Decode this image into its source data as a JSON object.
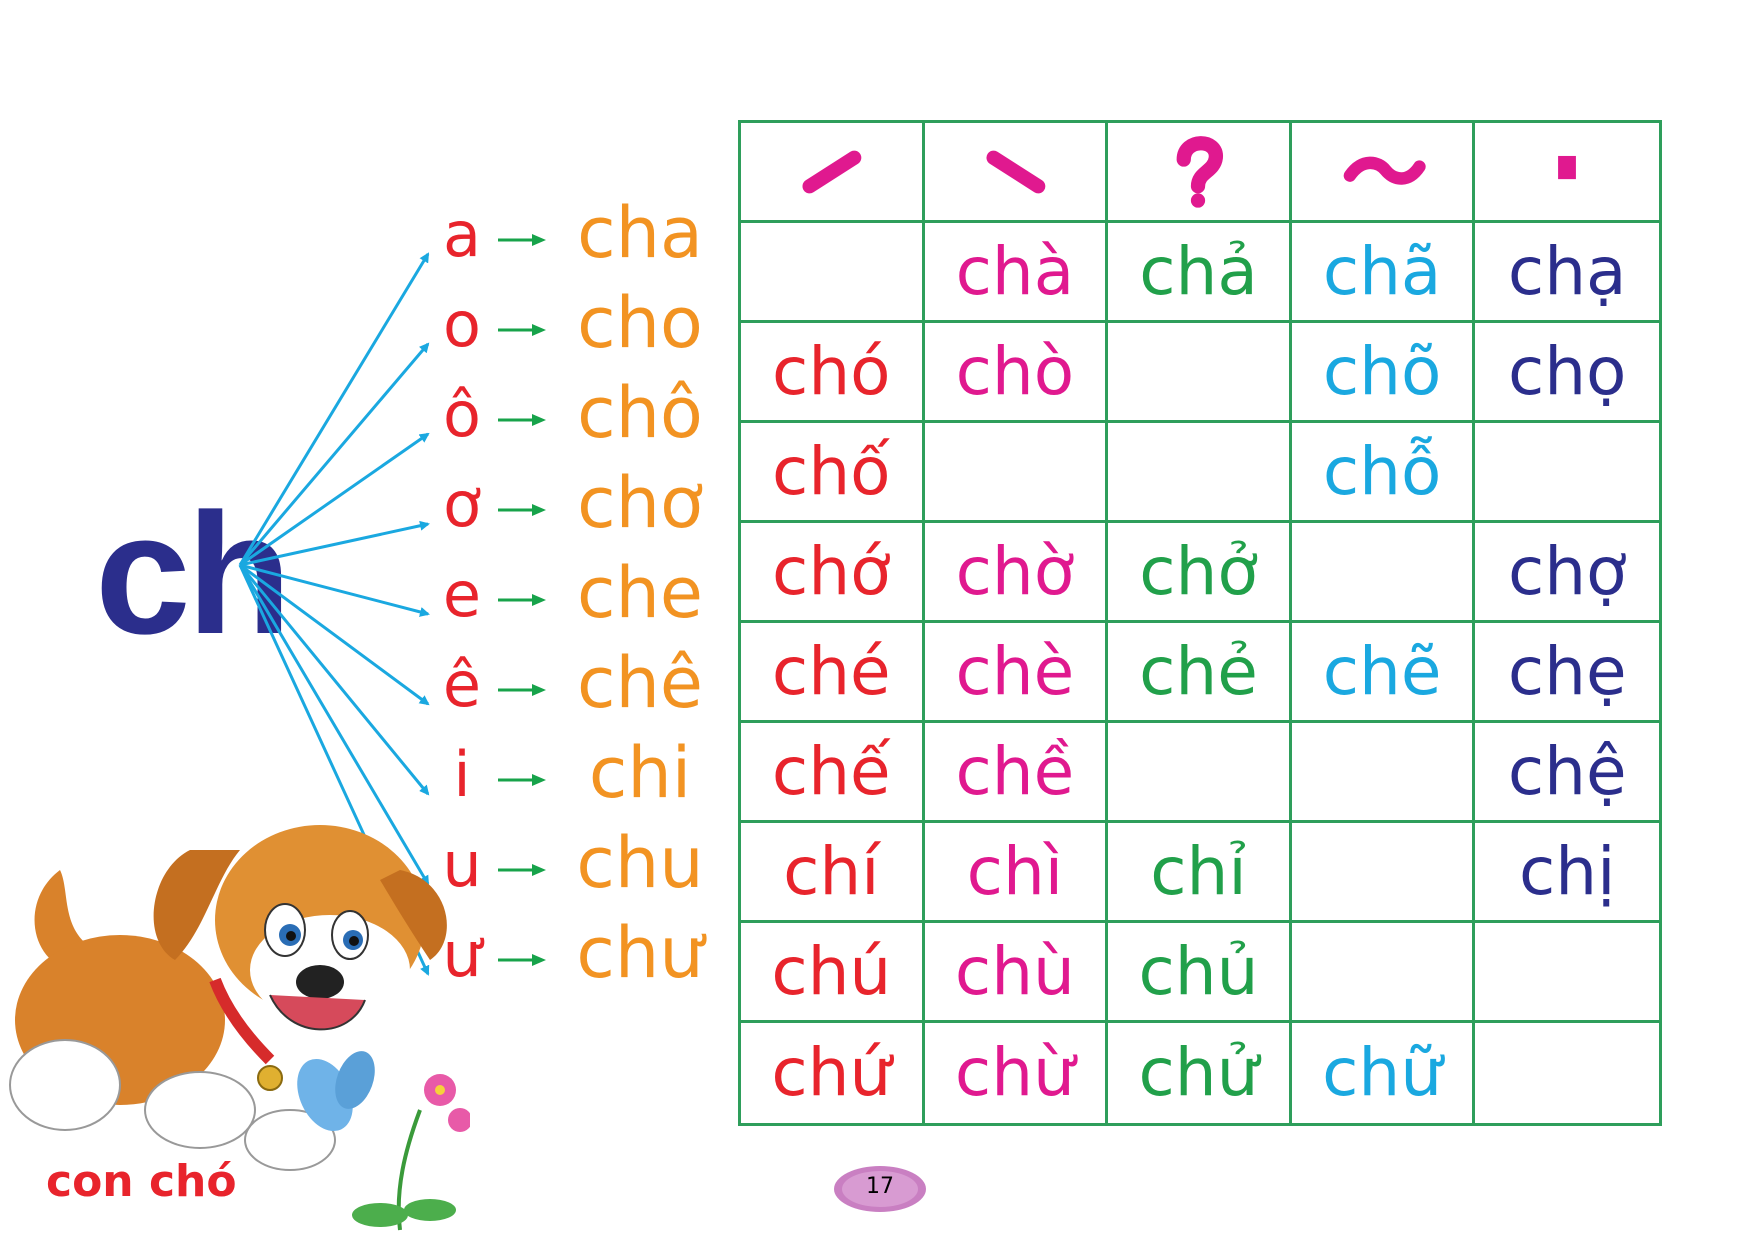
{
  "colors": {
    "navy": "#2b2e8c",
    "red": "#e8242c",
    "orange": "#f29322",
    "magenta": "#e0198f",
    "green": "#21a04a",
    "cyan": "#1aa8e0",
    "grid": "#2e9e5b",
    "arrow_blue": "#1aa8e0",
    "arrow_green": "#17a34a"
  },
  "consonant": "ch",
  "rows": [
    {
      "vowel": "a",
      "syllable": "cha"
    },
    {
      "vowel": "o",
      "syllable": "cho"
    },
    {
      "vowel": "ô",
      "syllable": "chô"
    },
    {
      "vowel": "ơ",
      "syllable": "chơ"
    },
    {
      "vowel": "e",
      "syllable": "che"
    },
    {
      "vowel": "ê",
      "syllable": "chê"
    },
    {
      "vowel": "i",
      "syllable": "chi"
    },
    {
      "vowel": "u",
      "syllable": "chu"
    },
    {
      "vowel": "ư",
      "syllable": "chư"
    }
  ],
  "tone_headers": [
    {
      "icon": "sac-tone-mark-icon"
    },
    {
      "icon": "huyen-tone-mark-icon"
    },
    {
      "icon": "hoi-tone-mark-icon"
    },
    {
      "icon": "nga-tone-mark-icon"
    },
    {
      "icon": "nang-tone-mark-icon"
    }
  ],
  "table": [
    [
      "",
      "chà",
      "chả",
      "chã",
      "chạ"
    ],
    [
      "chó",
      "chò",
      "",
      "chõ",
      "chọ"
    ],
    [
      "chố",
      "",
      "",
      "chỗ",
      ""
    ],
    [
      "chớ",
      "chờ",
      "chở",
      "",
      "chợ"
    ],
    [
      "ché",
      "chè",
      "chẻ",
      "chẽ",
      "chẹ"
    ],
    [
      "chế",
      "chề",
      "",
      "",
      "chệ"
    ],
    [
      "chí",
      "chì",
      "chỉ",
      "",
      "chị"
    ],
    [
      "chú",
      "chù",
      "chủ",
      "",
      ""
    ],
    [
      "chứ",
      "chừ",
      "chử",
      "chữ",
      ""
    ]
  ],
  "caption": "con chó",
  "page_number": "17"
}
